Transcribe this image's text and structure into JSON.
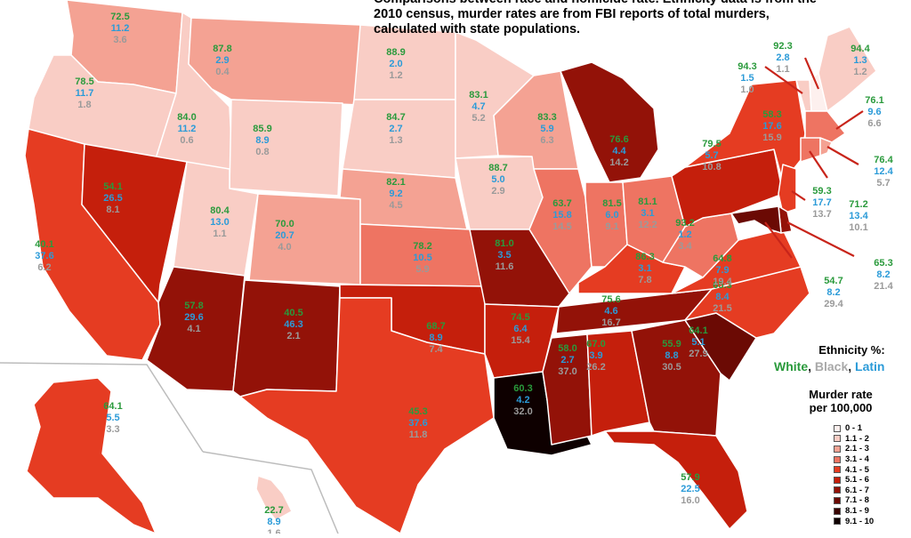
{
  "title_lines": [
    "Comparisons between race and homicide rate. Ethnicity data is from the",
    "2010 census, murder rates are from FBI reports of total murders,",
    "calculated with state populations."
  ],
  "legend": {
    "ethnicity_heading": "Ethnicity %:",
    "white_label": "White",
    "black_label": "Black",
    "latin_label": "Latin",
    "murder_heading_line1": "Murder rate",
    "murder_heading_line2": "per 100,000",
    "ranges": [
      {
        "label": "0 - 1",
        "color": "#fdf0ee"
      },
      {
        "label": "1.1 - 2",
        "color": "#f9cdc5"
      },
      {
        "label": "2.1 - 3",
        "color": "#f4a293"
      },
      {
        "label": "3.1 - 4",
        "color": "#ee7462"
      },
      {
        "label": "4.1 - 5",
        "color": "#e53c22"
      },
      {
        "label": "5.1 - 6",
        "color": "#c51f0c"
      },
      {
        "label": "6.1 - 7",
        "color": "#931208"
      },
      {
        "label": "7.1 - 8",
        "color": "#6b0a04"
      },
      {
        "label": "8.1 - 9",
        "color": "#380401"
      },
      {
        "label": "9.1 - 10",
        "color": "#0e0000"
      }
    ]
  },
  "states": [
    {
      "id": "WA",
      "white": "72.5",
      "latin": "11.2",
      "black": "3.6",
      "murder": 2.3
    },
    {
      "id": "OR",
      "white": "78.5",
      "latin": "11.7",
      "black": "1.8",
      "murder": 2.0
    },
    {
      "id": "CA",
      "white": "40.1",
      "latin": "37.6",
      "black": "6.2",
      "murder": 4.9
    },
    {
      "id": "ID",
      "white": "84.0",
      "latin": "11.2",
      "black": "0.6",
      "murder": 1.7
    },
    {
      "id": "NV",
      "white": "54.1",
      "latin": "26.5",
      "black": "8.1",
      "murder": 5.9
    },
    {
      "id": "MT",
      "white": "87.8",
      "latin": "2.9",
      "black": "0.4",
      "murder": 2.6
    },
    {
      "id": "WY",
      "white": "85.9",
      "latin": "8.9",
      "black": "0.8",
      "murder": 1.4
    },
    {
      "id": "UT",
      "white": "80.4",
      "latin": "13.0",
      "black": "1.1",
      "murder": 1.9
    },
    {
      "id": "AZ",
      "white": "57.8",
      "latin": "29.6",
      "black": "4.1",
      "murder": 6.4
    },
    {
      "id": "CO",
      "white": "70.0",
      "latin": "20.7",
      "black": "4.0",
      "murder": 3.0
    },
    {
      "id": "NM",
      "white": "40.5",
      "latin": "46.3",
      "black": "2.1",
      "murder": 6.9
    },
    {
      "id": "ND",
      "white": "88.9",
      "latin": "2.0",
      "black": "1.2",
      "murder": 1.5
    },
    {
      "id": "SD",
      "white": "84.7",
      "latin": "2.7",
      "black": "1.3",
      "murder": 1.2
    },
    {
      "id": "NE",
      "white": "82.1",
      "latin": "9.2",
      "black": "4.5",
      "murder": 2.9
    },
    {
      "id": "KS",
      "white": "78.2",
      "latin": "10.5",
      "black": "5.9",
      "murder": 3.8
    },
    {
      "id": "OK",
      "white": "68.7",
      "latin": "8.9",
      "black": "7.4",
      "murder": 5.3
    },
    {
      "id": "TX",
      "white": "45.3",
      "latin": "37.6",
      "black": "11.8",
      "murder": 5.0
    },
    {
      "id": "MN",
      "white": "83.1",
      "latin": "4.7",
      "black": "5.2",
      "murder": 1.8
    },
    {
      "id": "IA",
      "white": "88.7",
      "latin": "5.0",
      "black": "2.9",
      "murder": 1.4
    },
    {
      "id": "MO",
      "white": "81.0",
      "latin": "3.5",
      "black": "11.6",
      "murder": 7.0
    },
    {
      "id": "AR",
      "white": "74.5",
      "latin": "6.4",
      "black": "15.4",
      "murder": 5.4
    },
    {
      "id": "LA",
      "white": "60.3",
      "latin": "4.2",
      "black": "32.0",
      "murder": 10.0
    },
    {
      "id": "WI",
      "white": "83.3",
      "latin": "5.9",
      "black": "6.3",
      "murder": 2.6
    },
    {
      "id": "IL",
      "white": "63.7",
      "latin": "15.8",
      "black": "14.5",
      "murder": 3.5
    },
    {
      "id": "MI",
      "white": "76.6",
      "latin": "4.4",
      "black": "14.2",
      "murder": 7.0
    },
    {
      "id": "IN",
      "white": "81.5",
      "latin": "6.0",
      "black": "9.1",
      "murder": 3.7
    },
    {
      "id": "OH",
      "white": "81.1",
      "latin": "3.1",
      "black": "12.2",
      "murder": 3.5
    },
    {
      "id": "KY",
      "white": "86.3",
      "latin": "3.1",
      "black": "7.8",
      "murder": 4.7
    },
    {
      "id": "TN",
      "white": "75.6",
      "latin": "4.6",
      "black": "16.7",
      "murder": 6.5
    },
    {
      "id": "MS",
      "white": "58.0",
      "latin": "2.7",
      "black": "37.0",
      "murder": 6.6
    },
    {
      "id": "AL",
      "white": "67.0",
      "latin": "3.9",
      "black": "26.2",
      "murder": 5.9
    },
    {
      "id": "GA",
      "white": "55.9",
      "latin": "8.8",
      "black": "30.5",
      "murder": 6.4
    },
    {
      "id": "FL",
      "white": "57.9",
      "latin": "22.5",
      "black": "16.0",
      "murder": 5.2
    },
    {
      "id": "SC",
      "white": "64.1",
      "latin": "5.1",
      "black": "27.9",
      "murder": 7.6
    },
    {
      "id": "NC",
      "white": "65.3",
      "latin": "8.4",
      "black": "21.5",
      "murder": 5.0
    },
    {
      "id": "VA",
      "white": "64.8",
      "latin": "7.9",
      "black": "19.4",
      "murder": 4.6
    },
    {
      "id": "WV",
      "white": "93.2",
      "latin": "1.2",
      "black": "3.4",
      "murder": 3.3
    },
    {
      "id": "PA",
      "white": "79.5",
      "latin": "5.7",
      "black": "10.8",
      "murder": 5.6
    },
    {
      "id": "NY",
      "white": "58.3",
      "latin": "17.6",
      "black": "15.9",
      "murder": 4.7
    },
    {
      "id": "VT",
      "white": "94.3",
      "latin": "1.5",
      "black": "1.0",
      "murder": 1.1
    },
    {
      "id": "NH",
      "white": "92.3",
      "latin": "2.8",
      "black": "1.1",
      "murder": 1.0
    },
    {
      "id": "ME",
      "white": "94.4",
      "latin": "1.3",
      "black": "1.2",
      "murder": 1.9
    },
    {
      "id": "MA",
      "white": "76.1",
      "latin": "9.6",
      "black": "6.6",
      "murder": 3.2
    },
    {
      "id": "CT",
      "white": "71.2",
      "latin": "13.4",
      "black": "10.1",
      "murder": 3.6
    },
    {
      "id": "RI",
      "white": "76.4",
      "latin": "12.4",
      "black": "5.7",
      "murder": 2.9
    },
    {
      "id": "NJ",
      "white": "59.3",
      "latin": "17.7",
      "black": "13.7",
      "murder": 4.2
    },
    {
      "id": "DE",
      "white": "65.3",
      "latin": "8.2",
      "black": "21.4",
      "murder": 6.5
    },
    {
      "id": "MD",
      "white": "54.7",
      "latin": "8.2",
      "black": "29.4",
      "murder": 7.8
    },
    {
      "id": "AK",
      "white": "64.1",
      "latin": "5.5",
      "black": "3.3",
      "murder": 4.4
    },
    {
      "id": "HI",
      "white": "22.7",
      "latin": "8.9",
      "black": "1.6",
      "murder": 1.8
    }
  ]
}
